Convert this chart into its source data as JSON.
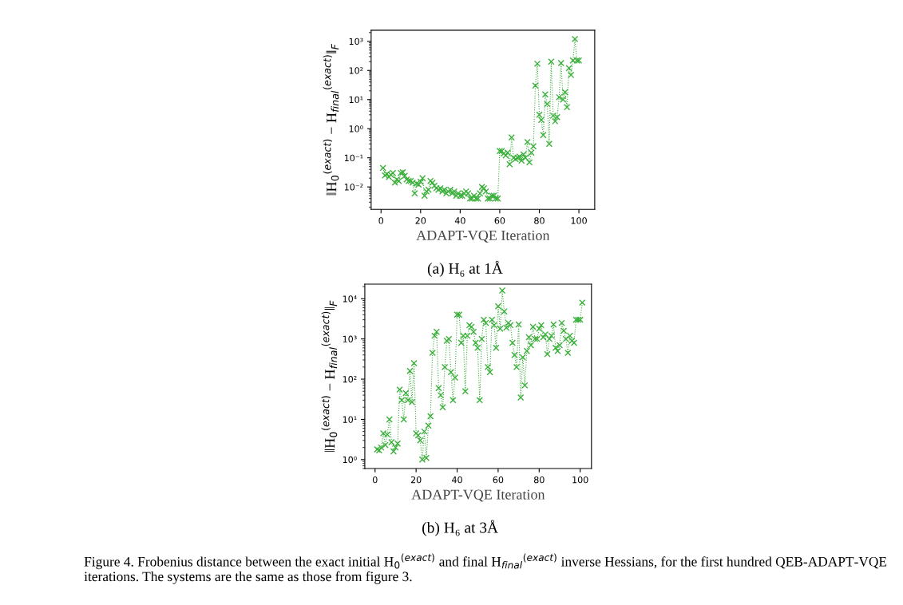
{
  "chart_data": [
    {
      "type": "line",
      "xlabel": "ADAPT-VQE Iteration",
      "ylabel": "‖H$_{0}$$^{(exact)}$ − H$_{final}$$^{(exact)}$‖$_{F}$",
      "log": "y",
      "marker": "cross",
      "line_style": "dotted",
      "grid": false,
      "legend": false,
      "xlim": [
        -5,
        108
      ],
      "xticks": [
        0,
        20,
        40,
        60,
        80,
        100
      ],
      "ylim": [
        0.0017,
        2400
      ],
      "yticks": [
        {
          "value": 0.01,
          "label": "10⁻²"
        },
        {
          "value": 0.1,
          "label": "10⁻¹"
        },
        {
          "value": 1,
          "label": "10⁰"
        },
        {
          "value": 10,
          "label": "10¹"
        },
        {
          "value": 100,
          "label": "10²"
        },
        {
          "value": 1000,
          "label": "10³"
        }
      ],
      "x": [
        1,
        2,
        3,
        4,
        5,
        6,
        7,
        8,
        9,
        10,
        11,
        12,
        13,
        14,
        15,
        16,
        17,
        18,
        19,
        20,
        21,
        22,
        23,
        24,
        25,
        26,
        27,
        28,
        29,
        30,
        31,
        32,
        33,
        34,
        35,
        36,
        37,
        38,
        39,
        40,
        41,
        42,
        43,
        44,
        45,
        46,
        47,
        48,
        49,
        50,
        51,
        52,
        53,
        54,
        55,
        56,
        57,
        58,
        59,
        60,
        61,
        62,
        63,
        64,
        65,
        66,
        67,
        68,
        69,
        70,
        71,
        72,
        73,
        74,
        75,
        76,
        77,
        78,
        79,
        80,
        81,
        82,
        83,
        84,
        85,
        86,
        87,
        88,
        89,
        90,
        91,
        92,
        93,
        94,
        95,
        96,
        97,
        98,
        99,
        100
      ],
      "series": [
        {
          "color": "#3cb03c",
          "values": [
            0.045,
            0.025,
            0.028,
            0.022,
            0.026,
            0.03,
            0.014,
            0.018,
            0.016,
            0.03,
            0.032,
            0.024,
            0.018,
            0.016,
            0.016,
            0.014,
            0.006,
            0.013,
            0.012,
            0.015,
            0.02,
            0.005,
            0.007,
            0.008,
            0.016,
            0.014,
            0.011,
            0.009,
            0.008,
            0.009,
            0.007,
            0.008,
            0.006,
            0.007,
            0.008,
            0.006,
            0.007,
            0.005,
            0.006,
            0.005,
            0.005,
            0.006,
            0.007,
            0.006,
            0.004,
            0.004,
            0.005,
            0.004,
            0.004,
            0.006,
            0.01,
            0.009,
            0.007,
            0.004,
            0.004,
            0.005,
            0.005,
            0.004,
            0.004,
            0.17,
            0.17,
            0.14,
            0.12,
            0.15,
            0.06,
            0.5,
            0.1,
            0.09,
            0.1,
            0.11,
            0.08,
            0.13,
            0.1,
            0.35,
            0.07,
            0.15,
            0.25,
            30,
            170,
            3,
            2,
            0.6,
            15,
            7,
            0.3,
            200,
            2.8,
            1.8,
            2.5,
            12,
            180,
            10,
            18,
            5.5,
            120,
            70,
            220,
            1200,
            220,
            220
          ]
        }
      ],
      "annotations": [
        "(a) H₆ at 1Å"
      ]
    },
    {
      "type": "line",
      "xlabel": "ADAPT-VQE Iteration",
      "ylabel": "‖H$_{0}$$^{(exact)}$ − H$_{final}$$^{(exact)}$‖$_{F}$",
      "log": "y",
      "marker": "cross",
      "line_style": "dotted",
      "grid": false,
      "legend": false,
      "xlim": [
        -5,
        105.5
      ],
      "xticks": [
        0,
        20,
        40,
        60,
        80,
        100
      ],
      "ylim": [
        0.6,
        23000
      ],
      "yticks": [
        {
          "value": 1,
          "label": "10⁰"
        },
        {
          "value": 10,
          "label": "10¹"
        },
        {
          "value": 100,
          "label": "10²"
        },
        {
          "value": 1000,
          "label": "10³"
        },
        {
          "value": 10000,
          "label": "10⁴"
        }
      ],
      "x": [
        1,
        2,
        3,
        4,
        5,
        6,
        7,
        8,
        9,
        10,
        11,
        12,
        13,
        14,
        15,
        16,
        17,
        18,
        19,
        20,
        21,
        22,
        23,
        24,
        25,
        26,
        27,
        28,
        29,
        30,
        31,
        32,
        33,
        34,
        35,
        36,
        37,
        38,
        39,
        40,
        41,
        42,
        43,
        44,
        45,
        46,
        47,
        48,
        49,
        50,
        51,
        52,
        53,
        54,
        55,
        56,
        57,
        58,
        59,
        60,
        61,
        62,
        63,
        64,
        65,
        66,
        67,
        68,
        69,
        70,
        71,
        72,
        73,
        74,
        75,
        76,
        77,
        78,
        79,
        80,
        81,
        82,
        83,
        84,
        85,
        86,
        87,
        88,
        89,
        90,
        91,
        92,
        93,
        94,
        95,
        96,
        97,
        98,
        99,
        100,
        101
      ],
      "series": [
        {
          "color": "#3cb03c",
          "values": [
            1.8,
            1.7,
            2.0,
            4.5,
            2.3,
            4.2,
            10,
            2.7,
            1.6,
            2.0,
            2.5,
            55,
            30,
            10,
            45,
            30,
            160,
            27,
            250,
            4.5,
            4,
            3,
            1.0,
            5,
            1.1,
            7,
            12,
            450,
            1200,
            1500,
            60,
            40,
            20,
            200,
            900,
            1000,
            150,
            30,
            110,
            4000,
            4000,
            800,
            1200,
            50,
            1200,
            2200,
            2000,
            1500,
            800,
            600,
            30,
            1000,
            3000,
            2500,
            200,
            150,
            3000,
            2200,
            600,
            6500,
            1800,
            16000,
            4800,
            1900,
            2500,
            2200,
            800,
            400,
            200,
            2300,
            35,
            350,
            70,
            500,
            1100,
            700,
            2000,
            1000,
            1000,
            1800,
            2200,
            1100,
            1300,
            420,
            1000,
            1200,
            2300,
            600,
            500,
            700,
            2500,
            1600,
            1000,
            450,
            1200,
            900,
            800,
            3000,
            3000,
            3000,
            8000
          ]
        }
      ],
      "annotations": [
        "(b) H₆ at 3Å",
        "Figure 4. Frobenius distance between the exact initial H$_{0}$$^{(exact)}$ and final H$_{final}$$^{(exact)}$ inverse Hessians, for the first hundred QEB-ADAPT-VQE iterations. The systems are the same as those from figure 3."
      ]
    }
  ]
}
